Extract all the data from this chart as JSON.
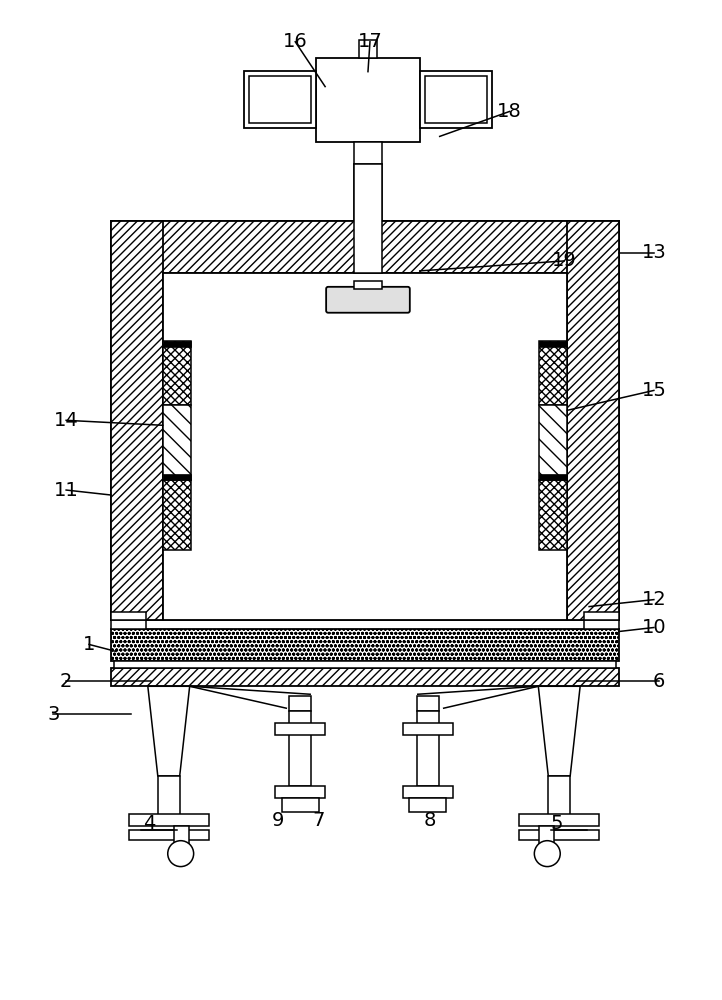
{
  "fig_width": 7.22,
  "fig_height": 10.0,
  "bg_color": "#ffffff",
  "line_color": "#000000"
}
